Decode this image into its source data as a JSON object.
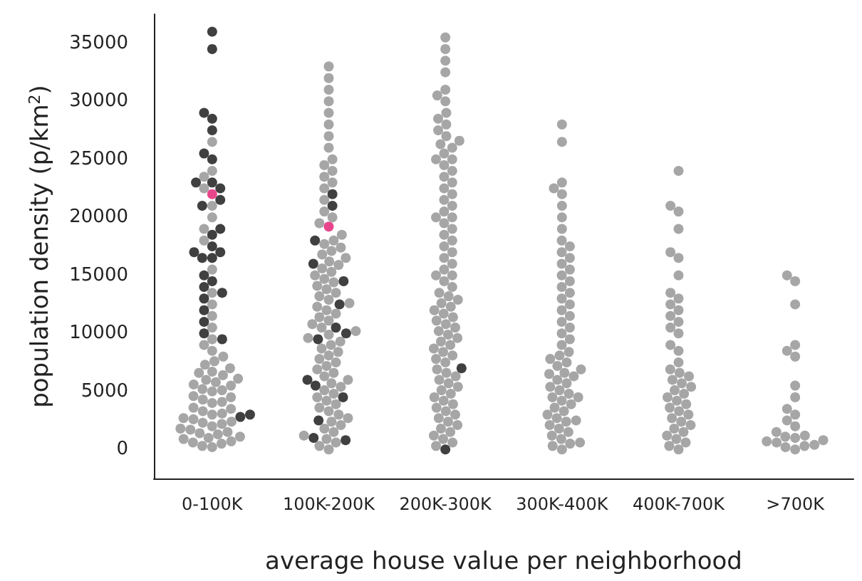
{
  "chart_data": {
    "type": "scatter",
    "xlabel": "average house value per neighborhood",
    "ylabel": "population density (p/km$^{2}$)",
    "categories": [
      "0-100K",
      "100K-200K",
      "200K-300K",
      "300K-400K",
      "400K-700K",
      ">700K"
    ],
    "ylim": [
      -2500,
      37500
    ],
    "yticks": [
      0,
      5000,
      10000,
      15000,
      20000,
      25000,
      30000,
      35000
    ],
    "marker": "circle",
    "series": [
      {
        "color": "#a6a6a6",
        "x": [
          "0-100K",
          "0-100K",
          "0-100K",
          "0-100K",
          "0-100K",
          "0-100K",
          "0-100K",
          "0-100K",
          "0-100K",
          "0-100K",
          "0-100K",
          "0-100K",
          "0-100K",
          "0-100K",
          "0-100K",
          "0-100K",
          "0-100K",
          "0-100K",
          "0-100K",
          "0-100K",
          "0-100K",
          "0-100K",
          "0-100K",
          "0-100K",
          "0-100K",
          "0-100K",
          "0-100K",
          "0-100K",
          "0-100K",
          "0-100K",
          "0-100K",
          "0-100K",
          "0-100K",
          "0-100K",
          "0-100K",
          "0-100K",
          "0-100K",
          "0-100K",
          "0-100K",
          "0-100K",
          "0-100K",
          "0-100K",
          "0-100K",
          "0-100K",
          "0-100K",
          "0-100K",
          "0-100K",
          "0-100K",
          "0-100K",
          "0-100K",
          "0-100K",
          "0-100K",
          "0-100K",
          "0-100K",
          "0-100K",
          "0-100K",
          "0-100K",
          "0-100K",
          "0-100K",
          "0-100K"
        ],
        "values": [
          300,
          500,
          700,
          900,
          1100,
          1300,
          1500,
          1700,
          2000,
          2200,
          2400,
          2600,
          3000,
          3300,
          3600,
          4000,
          4300,
          4600,
          5000,
          5200,
          5500,
          5800,
          6100,
          6400,
          6700,
          7000,
          7300,
          7600,
          8000,
          8500,
          9000,
          200,
          600,
          1000,
          1400,
          1800,
          2300,
          2700,
          3100,
          3500,
          4100,
          4500,
          5100,
          5600,
          6000,
          6600,
          9500,
          10500,
          11500,
          12500,
          13500,
          15500,
          18000,
          19000,
          20000,
          21000,
          24000,
          26500,
          22500,
          23500
        ]
      },
      {
        "color": "#a6a6a6",
        "x": [
          "100K-200K",
          "100K-200K",
          "100K-200K",
          "100K-200K",
          "100K-200K",
          "100K-200K",
          "100K-200K",
          "100K-200K",
          "100K-200K",
          "100K-200K",
          "100K-200K",
          "100K-200K",
          "100K-200K",
          "100K-200K",
          "100K-200K",
          "100K-200K",
          "100K-200K",
          "100K-200K",
          "100K-200K",
          "100K-200K",
          "100K-200K",
          "100K-200K",
          "100K-200K",
          "100K-200K",
          "100K-200K",
          "100K-200K",
          "100K-200K",
          "100K-200K",
          "100K-200K",
          "100K-200K",
          "100K-200K",
          "100K-200K",
          "100K-200K",
          "100K-200K",
          "100K-200K",
          "100K-200K",
          "100K-200K",
          "100K-200K",
          "100K-200K",
          "100K-200K",
          "100K-200K",
          "100K-200K",
          "100K-200K",
          "100K-200K",
          "100K-200K",
          "100K-200K",
          "100K-200K",
          "100K-200K",
          "100K-200K",
          "100K-200K",
          "100K-200K",
          "100K-200K",
          "100K-200K",
          "100K-200K",
          "100K-200K",
          "100K-200K",
          "100K-200K",
          "100K-200K",
          "100K-200K",
          "100K-200K",
          "100K-200K",
          "100K-200K",
          "100K-200K",
          "100K-200K",
          "100K-200K",
          "100K-200K",
          "100K-200K",
          "100K-200K",
          "100K-200K",
          "100K-200K",
          "100K-200K",
          "100K-200K",
          "100K-200K",
          "100K-200K",
          "100K-200K",
          "100K-200K",
          "100K-200K",
          "100K-200K",
          "100K-200K",
          "100K-200K"
        ],
        "values": [
          0,
          300,
          600,
          900,
          1200,
          1500,
          1800,
          2100,
          2400,
          2700,
          3000,
          3300,
          3600,
          3900,
          4200,
          4500,
          4800,
          5100,
          5400,
          5700,
          6000,
          6300,
          6600,
          6900,
          7200,
          7500,
          7800,
          8100,
          8400,
          8700,
          9000,
          9300,
          9600,
          9900,
          10200,
          10500,
          10800,
          11100,
          11400,
          11700,
          12000,
          12300,
          12600,
          12900,
          13200,
          13500,
          13800,
          14100,
          14400,
          14700,
          15000,
          15300,
          15600,
          15900,
          16200,
          16500,
          16800,
          17100,
          17400,
          17700,
          18000,
          18500,
          19500,
          20000,
          20500,
          21500,
          22500,
          23000,
          23500,
          24000,
          24500,
          25000,
          26000,
          27000,
          28000,
          29000,
          30000,
          31000,
          33000,
          32000
        ]
      },
      {
        "color": "#a6a6a6",
        "x": [
          "200K-300K",
          "200K-300K",
          "200K-300K",
          "200K-300K",
          "200K-300K",
          "200K-300K",
          "200K-300K",
          "200K-300K",
          "200K-300K",
          "200K-300K",
          "200K-300K",
          "200K-300K",
          "200K-300K",
          "200K-300K",
          "200K-300K",
          "200K-300K",
          "200K-300K",
          "200K-300K",
          "200K-300K",
          "200K-300K",
          "200K-300K",
          "200K-300K",
          "200K-300K",
          "200K-300K",
          "200K-300K",
          "200K-300K",
          "200K-300K",
          "200K-300K",
          "200K-300K",
          "200K-300K",
          "200K-300K",
          "200K-300K",
          "200K-300K",
          "200K-300K",
          "200K-300K",
          "200K-300K",
          "200K-300K",
          "200K-300K",
          "200K-300K",
          "200K-300K",
          "200K-300K",
          "200K-300K",
          "200K-300K",
          "200K-300K",
          "200K-300K",
          "200K-300K",
          "200K-300K",
          "200K-300K",
          "200K-300K",
          "200K-300K",
          "200K-300K",
          "200K-300K",
          "200K-300K",
          "200K-300K",
          "200K-300K",
          "200K-300K",
          "200K-300K",
          "200K-300K",
          "200K-300K",
          "200K-300K",
          "200K-300K",
          "200K-300K",
          "200K-300K",
          "200K-300K",
          "200K-300K",
          "200K-300K",
          "200K-300K",
          "200K-300K",
          "200K-300K",
          "200K-300K",
          "200K-300K",
          "200K-300K",
          "200K-300K",
          "200K-300K",
          "200K-300K",
          "200K-300K",
          "200K-300K",
          "200K-300K",
          "200K-300K",
          "200K-300K",
          "200K-300K",
          "200K-300K",
          "200K-300K",
          "200K-300K",
          "200K-300K",
          "200K-300K"
        ],
        "values": [
          300,
          600,
          900,
          1200,
          1500,
          1800,
          2100,
          2400,
          2700,
          3000,
          3300,
          3600,
          3900,
          4200,
          4500,
          4800,
          5100,
          5400,
          5700,
          6000,
          6300,
          6600,
          6900,
          7500,
          7800,
          8100,
          8400,
          8700,
          9000,
          9300,
          9600,
          9900,
          10200,
          10500,
          10800,
          11100,
          11400,
          11700,
          12000,
          12300,
          12600,
          12900,
          13200,
          13500,
          14000,
          14500,
          15000,
          15500,
          16000,
          16500,
          17000,
          17500,
          18000,
          18500,
          19000,
          19500,
          20000,
          20500,
          21000,
          21500,
          22000,
          22500,
          23000,
          23500,
          24000,
          24500,
          25000,
          25500,
          26000,
          26300,
          26600,
          27000,
          27500,
          28000,
          28500,
          29000,
          30000,
          30500,
          31000,
          32500,
          33500,
          34500,
          35500,
          15000,
          20000,
          25000
        ]
      },
      {
        "color": "#a6a6a6",
        "x": [
          "300K-400K",
          "300K-400K",
          "300K-400K",
          "300K-400K",
          "300K-400K",
          "300K-400K",
          "300K-400K",
          "300K-400K",
          "300K-400K",
          "300K-400K",
          "300K-400K",
          "300K-400K",
          "300K-400K",
          "300K-400K",
          "300K-400K",
          "300K-400K",
          "300K-400K",
          "300K-400K",
          "300K-400K",
          "300K-400K",
          "300K-400K",
          "300K-400K",
          "300K-400K",
          "300K-400K",
          "300K-400K",
          "300K-400K",
          "300K-400K",
          "300K-400K",
          "300K-400K",
          "300K-400K",
          "300K-400K",
          "300K-400K",
          "300K-400K",
          "300K-400K",
          "300K-400K",
          "300K-400K",
          "300K-400K",
          "300K-400K",
          "300K-400K",
          "300K-400K",
          "300K-400K",
          "300K-400K",
          "300K-400K",
          "300K-400K",
          "300K-400K",
          "300K-400K",
          "300K-400K",
          "300K-400K",
          "300K-400K",
          "300K-400K",
          "300K-400K",
          "300K-400K",
          "300K-400K",
          "300K-400K",
          "300K-400K",
          "300K-400K",
          "300K-400K",
          "300K-400K",
          "300K-400K",
          "300K-400K"
        ],
        "values": [
          0,
          300,
          600,
          900,
          1200,
          1500,
          1800,
          2100,
          2400,
          2700,
          3000,
          3300,
          3600,
          3900,
          4200,
          4500,
          4800,
          5100,
          5400,
          5700,
          6000,
          6300,
          6600,
          6900,
          7200,
          7500,
          7800,
          8100,
          8400,
          500,
          2500,
          4500,
          6500,
          9000,
          9500,
          10000,
          10500,
          11000,
          11500,
          12000,
          12500,
          13000,
          13500,
          14000,
          14500,
          15000,
          15500,
          16000,
          16500,
          17000,
          17500,
          18000,
          19000,
          20000,
          21000,
          22000,
          22500,
          23000,
          26500,
          28000
        ]
      },
      {
        "color": "#a6a6a6",
        "x": [
          "400K-700K",
          "400K-700K",
          "400K-700K",
          "400K-700K",
          "400K-700K",
          "400K-700K",
          "400K-700K",
          "400K-700K",
          "400K-700K",
          "400K-700K",
          "400K-700K",
          "400K-700K",
          "400K-700K",
          "400K-700K",
          "400K-700K",
          "400K-700K",
          "400K-700K",
          "400K-700K",
          "400K-700K",
          "400K-700K",
          "400K-700K",
          "400K-700K",
          "400K-700K",
          "400K-700K",
          "400K-700K",
          "400K-700K",
          "400K-700K",
          "400K-700K",
          "400K-700K",
          "400K-700K",
          "400K-700K",
          "400K-700K",
          "400K-700K",
          "400K-700K",
          "400K-700K",
          "400K-700K",
          "400K-700K",
          "400K-700K",
          "400K-700K",
          "400K-700K",
          "400K-700K",
          "400K-700K"
        ],
        "values": [
          0,
          300,
          600,
          900,
          1200,
          1500,
          1800,
          2100,
          2400,
          2700,
          3000,
          3300,
          3600,
          3900,
          4200,
          4500,
          4800,
          5100,
          5400,
          5700,
          6000,
          6300,
          6600,
          6900,
          7500,
          8500,
          9000,
          10000,
          10500,
          11000,
          11500,
          12000,
          12500,
          13000,
          13500,
          15000,
          16500,
          17000,
          19000,
          20500,
          21000,
          24000
        ]
      },
      {
        "color": "#a6a6a6",
        "x": [
          ">700K",
          ">700K",
          ">700K",
          ">700K",
          ">700K",
          ">700K",
          ">700K",
          ">700K",
          ">700K",
          ">700K",
          ">700K",
          ">700K",
          ">700K",
          ">700K",
          ">700K",
          ">700K",
          ">700K",
          ">700K",
          ">700K",
          ">700K",
          ">700K",
          ">700K",
          ">700K"
        ],
        "values": [
          0,
          200,
          400,
          600,
          800,
          1000,
          1200,
          1500,
          300,
          700,
          1100,
          2000,
          2500,
          3000,
          3500,
          4500,
          5500,
          8000,
          8500,
          9000,
          12500,
          14500,
          15000
        ]
      },
      {
        "color": "#404040",
        "x": [
          "0-100K",
          "0-100K",
          "0-100K",
          "0-100K",
          "0-100K",
          "0-100K",
          "0-100K",
          "0-100K",
          "0-100K",
          "0-100K",
          "0-100K",
          "0-100K",
          "0-100K",
          "0-100K",
          "0-100K",
          "0-100K",
          "0-100K",
          "0-100K",
          "0-100K",
          "0-100K",
          "0-100K",
          "0-100K",
          "0-100K",
          "0-100K",
          "0-100K",
          "0-100K",
          "0-100K",
          "0-100K",
          "0-100K",
          "0-100K",
          "100K-200K",
          "100K-200K",
          "100K-200K",
          "100K-200K",
          "100K-200K",
          "100K-200K",
          "100K-200K",
          "100K-200K",
          "100K-200K",
          "100K-200K",
          "100K-200K",
          "100K-200K",
          "100K-200K",
          "100K-200K",
          "100K-200K",
          "200K-300K",
          "200K-300K"
        ],
        "values": [
          36000,
          34500,
          29000,
          28500,
          27500,
          25500,
          25000,
          23000,
          23000,
          22500,
          21500,
          21000,
          19000,
          18500,
          17500,
          17000,
          17000,
          16500,
          16500,
          15000,
          14500,
          14000,
          13000,
          12000,
          11000,
          10000,
          9500,
          3000,
          2800,
          13500,
          22000,
          21000,
          18000,
          16000,
          14500,
          12500,
          10500,
          10000,
          9500,
          6000,
          5500,
          4500,
          2500,
          1000,
          800,
          7000,
          0
        ]
      },
      {
        "color": "#e8468c",
        "x": [
          "100K-200K",
          "0-100K"
        ],
        "values": [
          19200,
          22000
        ]
      }
    ]
  }
}
